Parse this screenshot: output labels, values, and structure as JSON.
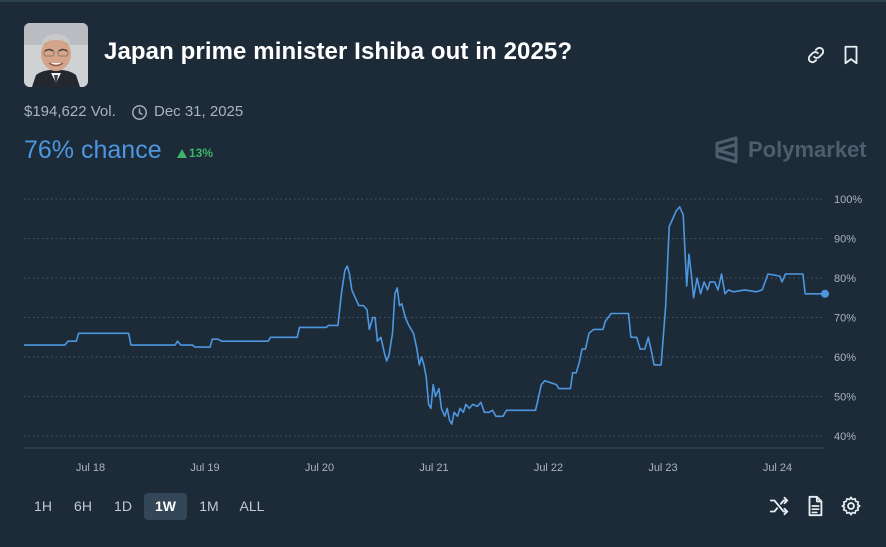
{
  "market": {
    "title": "Japan prime minister Ishiba out in 2025?",
    "volume": "$194,622 Vol.",
    "end_date": "Dec 31, 2025",
    "chance": "76% chance",
    "change": "13%",
    "change_direction": "up",
    "brand": "Polymarket"
  },
  "icons": {
    "avatar": "portrait-photo",
    "link": "link-icon",
    "bookmark": "bookmark-icon",
    "clock": "clock-icon",
    "trend_up": "triangle-up-icon",
    "brand_logo": "polymarket-logo",
    "shuffle": "shuffle-icon",
    "document": "document-icon",
    "settings": "gear-icon"
  },
  "colors": {
    "background": "#1d2b39",
    "accent": "#4d97e0",
    "positive": "#3db468",
    "muted": "#a8b3be",
    "brand": "#4f5e6c",
    "grid": "#4a5a69"
  },
  "timeframes": [
    "1H",
    "6H",
    "1D",
    "1W",
    "1M",
    "ALL"
  ],
  "active_timeframe": "1W",
  "chart_data": {
    "type": "line",
    "ylim": [
      40,
      100
    ],
    "ytick_labels": [
      "100%",
      "90%",
      "80%",
      "70%",
      "60%",
      "50%",
      "40%"
    ],
    "ytick_values": [
      100,
      90,
      80,
      70,
      60,
      50,
      40
    ],
    "xtick_labels": [
      "Jul 18",
      "Jul 19",
      "Jul 20",
      "Jul 21",
      "Jul 22",
      "Jul 23",
      "Jul 24"
    ],
    "xtick_values": [
      1,
      2,
      3,
      4,
      5,
      6,
      7
    ],
    "grid": true,
    "series": [
      {
        "color": "#4d97e0",
        "points": [
          [
            0,
            63
          ],
          [
            0.35,
            63
          ],
          [
            0.38,
            64
          ],
          [
            0.45,
            64
          ],
          [
            0.47,
            66
          ],
          [
            0.9,
            66
          ],
          [
            0.92,
            63
          ],
          [
            1.3,
            63
          ],
          [
            1.32,
            64
          ],
          [
            1.35,
            63
          ],
          [
            1.45,
            63
          ],
          [
            1.47,
            62.5
          ],
          [
            1.6,
            62.5
          ],
          [
            1.62,
            64.5
          ],
          [
            1.67,
            64.5
          ],
          [
            1.7,
            64
          ],
          [
            2.1,
            64
          ],
          [
            2.12,
            65
          ],
          [
            2.35,
            65
          ],
          [
            2.37,
            67.5
          ],
          [
            2.6,
            67.5
          ],
          [
            2.62,
            68
          ],
          [
            2.7,
            68
          ],
          [
            2.73,
            76
          ],
          [
            2.76,
            82
          ],
          [
            2.78,
            83
          ],
          [
            2.8,
            81
          ],
          [
            2.82,
            77
          ],
          [
            2.85,
            75
          ],
          [
            2.88,
            73
          ],
          [
            2.92,
            73
          ],
          [
            2.95,
            72
          ],
          [
            2.97,
            67
          ],
          [
            3.0,
            70
          ],
          [
            3.02,
            70
          ],
          [
            3.04,
            64
          ],
          [
            3.07,
            65
          ],
          [
            3.1,
            61
          ],
          [
            3.12,
            59
          ],
          [
            3.14,
            60.5
          ],
          [
            3.17,
            66
          ],
          [
            3.19,
            76
          ],
          [
            3.21,
            77.5
          ],
          [
            3.23,
            73
          ],
          [
            3.25,
            73.5
          ],
          [
            3.28,
            70
          ],
          [
            3.31,
            68
          ],
          [
            3.35,
            66
          ],
          [
            3.38,
            62
          ],
          [
            3.4,
            58
          ],
          [
            3.42,
            60
          ],
          [
            3.44,
            58
          ],
          [
            3.46,
            55
          ],
          [
            3.48,
            48
          ],
          [
            3.5,
            47
          ],
          [
            3.52,
            53
          ],
          [
            3.54,
            50
          ],
          [
            3.57,
            52
          ],
          [
            3.59,
            47
          ],
          [
            3.62,
            45
          ],
          [
            3.64,
            47
          ],
          [
            3.66,
            44
          ],
          [
            3.68,
            43
          ],
          [
            3.7,
            46
          ],
          [
            3.73,
            45
          ],
          [
            3.75,
            47
          ],
          [
            3.78,
            46
          ],
          [
            3.8,
            48
          ],
          [
            3.83,
            47
          ],
          [
            3.86,
            48
          ],
          [
            3.9,
            47.5
          ],
          [
            3.93,
            48.5
          ],
          [
            3.96,
            46
          ],
          [
            4.0,
            46
          ],
          [
            4.03,
            46.5
          ],
          [
            4.06,
            45
          ],
          [
            4.12,
            45
          ],
          [
            4.15,
            46.5
          ],
          [
            4.4,
            46.5
          ],
          [
            4.42,
            49
          ],
          [
            4.45,
            53
          ],
          [
            4.48,
            54
          ],
          [
            4.58,
            53
          ],
          [
            4.6,
            52
          ],
          [
            4.7,
            52
          ],
          [
            4.72,
            56
          ],
          [
            4.75,
            56
          ],
          [
            4.78,
            59
          ],
          [
            4.8,
            62
          ],
          [
            4.83,
            62
          ],
          [
            4.86,
            66
          ],
          [
            4.9,
            67
          ],
          [
            4.98,
            67
          ],
          [
            5.0,
            69
          ],
          [
            5.05,
            71
          ],
          [
            5.2,
            71
          ],
          [
            5.22,
            65
          ],
          [
            5.27,
            65
          ],
          [
            5.3,
            62
          ],
          [
            5.34,
            62
          ],
          [
            5.37,
            65
          ],
          [
            5.4,
            61
          ],
          [
            5.42,
            58
          ],
          [
            5.48,
            58
          ],
          [
            5.52,
            73
          ],
          [
            5.55,
            93
          ],
          [
            5.58,
            95
          ],
          [
            5.61,
            97
          ],
          [
            5.64,
            98
          ],
          [
            5.67,
            96
          ],
          [
            5.7,
            78
          ],
          [
            5.72,
            86
          ],
          [
            5.74,
            81
          ],
          [
            5.76,
            75
          ],
          [
            5.79,
            80
          ],
          [
            5.82,
            76
          ],
          [
            5.85,
            79
          ],
          [
            5.88,
            77
          ],
          [
            5.9,
            79
          ],
          [
            5.94,
            79
          ],
          [
            5.97,
            77
          ],
          [
            6.0,
            81
          ],
          [
            6.03,
            76
          ],
          [
            6.06,
            77
          ],
          [
            6.1,
            76.5
          ],
          [
            6.2,
            77
          ],
          [
            6.3,
            76.5
          ],
          [
            6.35,
            77
          ],
          [
            6.4,
            81
          ],
          [
            6.5,
            80.5
          ],
          [
            6.52,
            79
          ],
          [
            6.55,
            81
          ],
          [
            6.7,
            81
          ],
          [
            6.72,
            76
          ],
          [
            6.85,
            76
          ],
          [
            6.89,
            76
          ]
        ]
      }
    ]
  }
}
